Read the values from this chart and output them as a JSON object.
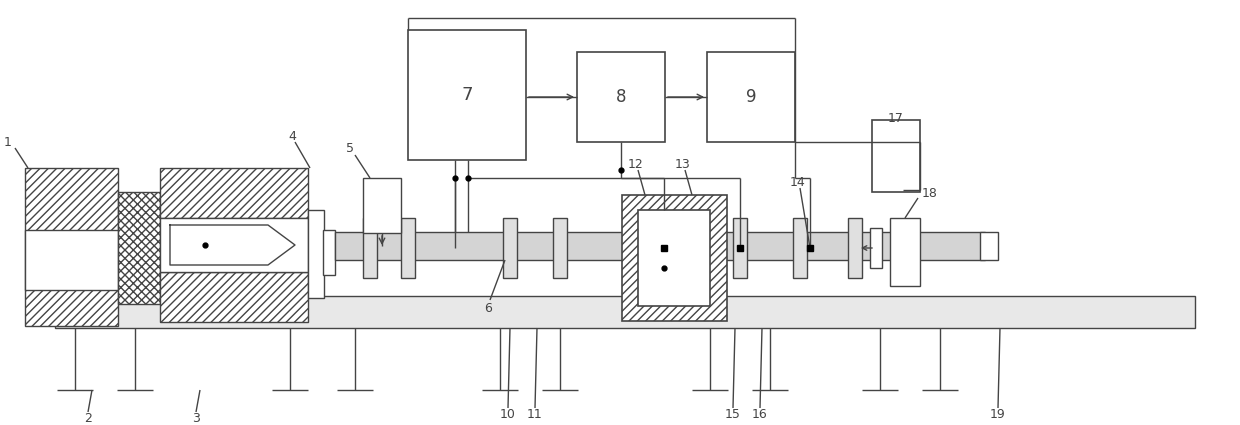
{
  "bg": "#ffffff",
  "lc": "#444444",
  "lw": 1.0,
  "fw": 12.4,
  "fh": 4.25,
  "dpi": 100
}
